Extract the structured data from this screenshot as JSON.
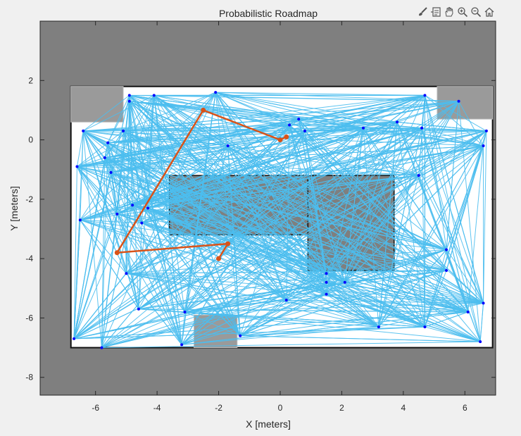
{
  "toolbar": {
    "icons": [
      "brush-icon",
      "data-tips-icon",
      "pan-icon",
      "zoom-in-icon",
      "zoom-out-icon",
      "home-icon"
    ]
  },
  "colors": {
    "figure_bg": "#f0f0f0",
    "occupied": "#7f7f7f",
    "free": "#ffffff",
    "edges": "#4dbeee",
    "nodes": "#0000ff",
    "path": "#d95319",
    "axis": "#262626"
  },
  "chart_data": {
    "type": "scatter",
    "title": "Probabilistic Roadmap",
    "xlabel": "X [meters]",
    "ylabel": "Y [meters]",
    "xlim": [
      -7.8,
      7.0
    ],
    "ylim": [
      -8.6,
      4.0
    ],
    "xticks": [
      -6,
      -4,
      -2,
      0,
      2,
      4,
      6
    ],
    "yticks": [
      2,
      0,
      -2,
      -4,
      -6,
      -8
    ],
    "map": {
      "free_region": {
        "x": [
          -6.8,
          6.9
        ],
        "y": [
          -7.0,
          1.8
        ]
      },
      "obstacles": [
        {
          "x": [
            -3.6,
            1.8
          ],
          "y": [
            -3.2,
            -1.2
          ]
        },
        {
          "x": [
            0.9,
            3.7
          ],
          "y": [
            -4.4,
            -1.2
          ]
        },
        {
          "x": [
            -2.8,
            -1.4
          ],
          "y": [
            -7.0,
            -5.9
          ]
        },
        {
          "x": [
            -6.8,
            -5.1
          ],
          "y": [
            0.6,
            1.8
          ]
        },
        {
          "x": [
            5.1,
            6.9
          ],
          "y": [
            0.7,
            1.8
          ]
        }
      ]
    },
    "nodes": [
      [
        -6.4,
        0.3
      ],
      [
        -6.6,
        -0.9
      ],
      [
        -6.5,
        -2.7
      ],
      [
        -6.7,
        -6.7
      ],
      [
        -5.8,
        -7.0
      ],
      [
        -5.7,
        -0.6
      ],
      [
        -5.6,
        -0.1
      ],
      [
        -5.5,
        -1.1
      ],
      [
        -5.3,
        -2.5
      ],
      [
        -5.1,
        0.3
      ],
      [
        -5.0,
        -4.5
      ],
      [
        -4.9,
        1.3
      ],
      [
        -4.9,
        1.5
      ],
      [
        -4.8,
        -2.2
      ],
      [
        -4.6,
        -5.7
      ],
      [
        -4.5,
        -2.8
      ],
      [
        -4.3,
        -2.3
      ],
      [
        -4.1,
        1.5
      ],
      [
        -3.1,
        -5.8
      ],
      [
        -3.2,
        -6.9
      ],
      [
        -2.1,
        1.6
      ],
      [
        -1.7,
        -0.2
      ],
      [
        -1.3,
        -6.6
      ],
      [
        0.2,
        -5.4
      ],
      [
        0.3,
        0.5
      ],
      [
        0.6,
        0.7
      ],
      [
        0.8,
        0.3
      ],
      [
        1.5,
        -4.5
      ],
      [
        1.5,
        -4.8
      ],
      [
        1.5,
        -5.2
      ],
      [
        2.1,
        -4.8
      ],
      [
        2.7,
        0.4
      ],
      [
        3.2,
        -6.3
      ],
      [
        3.8,
        0.6
      ],
      [
        4.5,
        -1.2
      ],
      [
        4.6,
        0.4
      ],
      [
        4.7,
        1.5
      ],
      [
        4.7,
        -6.3
      ],
      [
        5.4,
        -3.7
      ],
      [
        5.4,
        -4.4
      ],
      [
        5.8,
        1.3
      ],
      [
        6.1,
        -5.8
      ],
      [
        6.6,
        -0.2
      ],
      [
        6.7,
        0.3
      ],
      [
        6.6,
        -5.5
      ],
      [
        6.5,
        -6.8
      ]
    ],
    "edge_count": 760,
    "path": [
      [
        0.2,
        0.1
      ],
      [
        0.0,
        0.0
      ],
      [
        -2.5,
        1.0
      ],
      [
        -5.3,
        -3.8
      ],
      [
        -1.7,
        -3.5
      ],
      [
        -2.0,
        -4.0
      ]
    ]
  }
}
